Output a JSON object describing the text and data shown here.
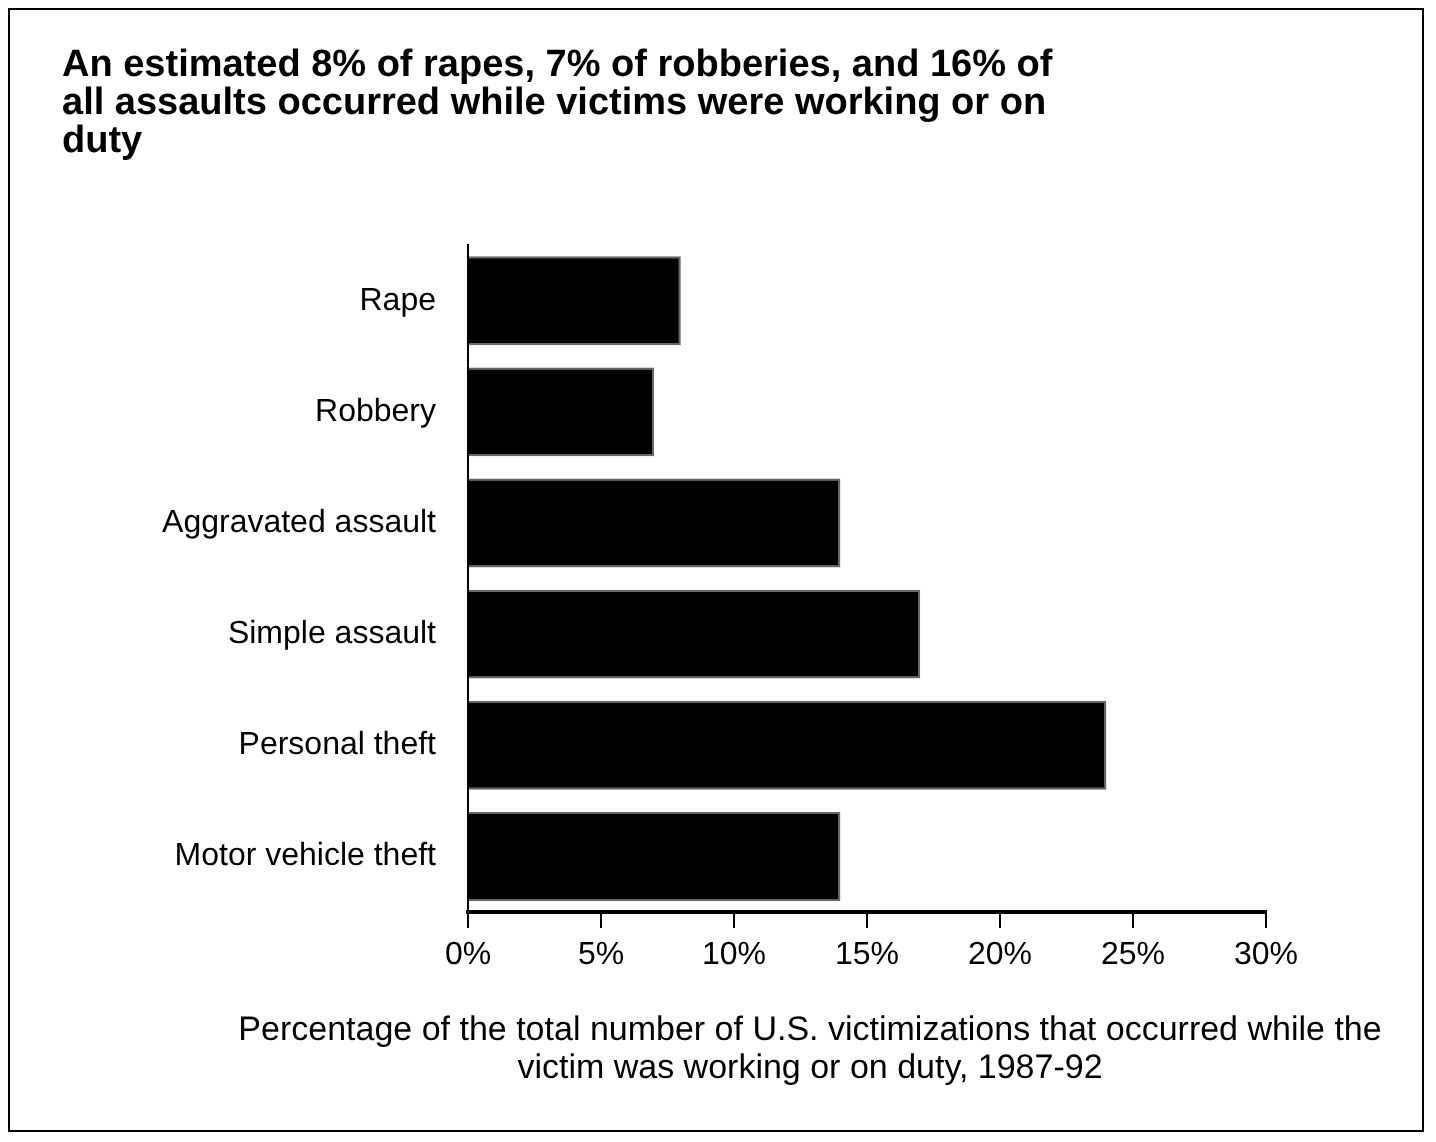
{
  "chart_data": {
    "type": "bar",
    "orientation": "horizontal",
    "title": "An estimated 8% of rapes, 7% of robberies, and 16% of all assaults occurred while victims were working or on duty",
    "xlabel": "Percentage of the total number of U.S. victimizations that occurred while the victim was working or on duty, 1987-92",
    "categories": [
      "Rape",
      "Robbery",
      "Aggravated assault",
      "Simple assault",
      "Personal theft",
      "Motor vehicle theft"
    ],
    "values": [
      8,
      7,
      14,
      17,
      24,
      14
    ],
    "color": "#000000",
    "xlim": [
      0,
      30
    ],
    "xticks": [
      {
        "value": 0,
        "label": "0%"
      },
      {
        "value": 5,
        "label": "5%"
      },
      {
        "value": 10,
        "label": "10%"
      },
      {
        "value": 15,
        "label": "15%"
      },
      {
        "value": 20,
        "label": "20%"
      },
      {
        "value": 25,
        "label": "25%"
      },
      {
        "value": 30,
        "label": "30%"
      }
    ],
    "grid": false,
    "legend": false
  }
}
